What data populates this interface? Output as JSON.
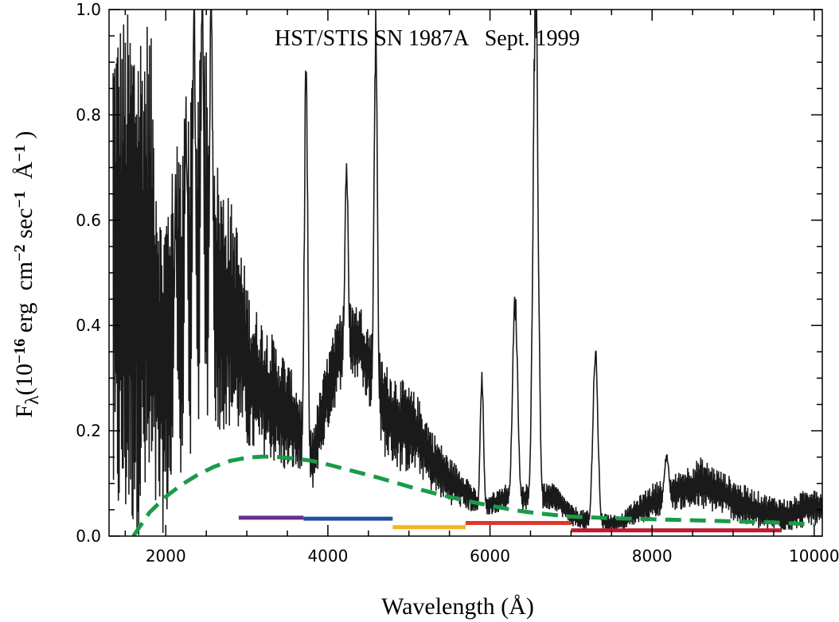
{
  "chart_data": {
    "type": "line",
    "title": "HST/STIS SN 1987A   Sept. 1999",
    "xlabel": "Wavelength (Å)",
    "ylabel": {
      "prefix": "F",
      "sub": "λ",
      "parts": [
        {
          "t": "(10"
        },
        {
          "t": "−16",
          "sup": true
        },
        {
          "t": " erg  cm"
        },
        {
          "t": "−2",
          "sup": true
        },
        {
          "t": " sec"
        },
        {
          "t": "−1",
          "sup": true
        },
        {
          "t": "  Å"
        },
        {
          "t": "−1",
          "sup": true
        },
        {
          "t": " )"
        }
      ]
    },
    "xlim": [
      1300,
      10100
    ],
    "ylim": [
      0.0,
      1.0
    ],
    "xticks": [
      2000,
      4000,
      6000,
      8000,
      10000
    ],
    "xtick_labels": [
      "2000",
      "4000",
      "6000",
      "8000",
      "10000"
    ],
    "yticks": [
      0.0,
      0.2,
      0.4,
      0.6,
      0.8,
      1.0
    ],
    "ytick_labels": [
      "0.0",
      "0.2",
      "0.4",
      "0.6",
      "0.8",
      "1.0"
    ],
    "colors": {
      "spectrum": "#1a1a1a",
      "model": "#1a9b48",
      "bands": [
        "#6b2c91",
        "#1f4fa3",
        "#f5b51a",
        "#e0362c",
        "#c0182e"
      ]
    },
    "series": [
      {
        "style": "solid",
        "envelope": [
          [
            1350,
            0.0,
            1.0
          ],
          [
            1500,
            0.0,
            1.0
          ],
          [
            1650,
            0.0,
            1.0
          ],
          [
            1800,
            0.0,
            1.0
          ],
          [
            1950,
            0.0,
            0.6
          ],
          [
            2100,
            0.05,
            0.75
          ],
          [
            2250,
            0.05,
            0.82
          ],
          [
            2450,
            0.1,
            1.0
          ],
          [
            2650,
            0.2,
            0.7
          ],
          [
            2850,
            0.2,
            0.62
          ],
          [
            3050,
            0.15,
            0.45
          ],
          [
            3250,
            0.15,
            0.4
          ],
          [
            3450,
            0.12,
            0.35
          ],
          [
            3600,
            0.12,
            0.3
          ],
          [
            3800,
            0.08,
            0.2
          ],
          [
            4000,
            0.2,
            0.35
          ],
          [
            4200,
            0.3,
            0.45
          ],
          [
            4400,
            0.3,
            0.44
          ],
          [
            4700,
            0.15,
            0.33
          ],
          [
            4900,
            0.12,
            0.3
          ],
          [
            5100,
            0.12,
            0.27
          ],
          [
            5300,
            0.08,
            0.2
          ],
          [
            5500,
            0.06,
            0.15
          ],
          [
            5700,
            0.05,
            0.12
          ],
          [
            5850,
            0.04,
            0.08
          ],
          [
            6000,
            0.04,
            0.08
          ],
          [
            6200,
            0.05,
            0.1
          ],
          [
            6800,
            0.05,
            0.1
          ],
          [
            7000,
            0.02,
            0.06
          ],
          [
            7150,
            0.01,
            0.05
          ],
          [
            7600,
            0.01,
            0.04
          ],
          [
            7800,
            0.02,
            0.07
          ],
          [
            8000,
            0.03,
            0.1
          ],
          [
            8300,
            0.05,
            0.12
          ],
          [
            8600,
            0.05,
            0.15
          ],
          [
            8900,
            0.04,
            0.12
          ],
          [
            9100,
            0.02,
            0.1
          ],
          [
            9400,
            0.01,
            0.08
          ],
          [
            9700,
            0.01,
            0.07
          ],
          [
            10000,
            0.02,
            0.1
          ],
          [
            10100,
            0.02,
            0.08
          ]
        ],
        "peaks": [
          [
            2120,
            0.6
          ],
          [
            2250,
            0.78
          ],
          [
            2350,
            0.97
          ],
          [
            2450,
            1.0
          ],
          [
            2560,
            1.0
          ],
          [
            3730,
            0.88
          ],
          [
            4230,
            0.68
          ],
          [
            4590,
            0.94
          ],
          [
            5900,
            0.29
          ],
          [
            6310,
            0.44
          ],
          [
            6563,
            1.0
          ],
          [
            7300,
            0.34
          ],
          [
            8180,
            0.15
          ]
        ]
      },
      {
        "style": "dashed",
        "x": [
          1600,
          1800,
          2000,
          2200,
          2400,
          2600,
          2800,
          3000,
          3200,
          3400,
          3600,
          3800,
          4000,
          4200,
          4400,
          4600,
          4800,
          5000,
          5200,
          5400,
          5600,
          5800,
          6000,
          6200,
          6400,
          6600,
          6800,
          7000,
          7500,
          8000,
          8500,
          9000,
          9500,
          10000
        ],
        "y": [
          0.0,
          0.045,
          0.075,
          0.098,
          0.117,
          0.132,
          0.143,
          0.149,
          0.151,
          0.15,
          0.147,
          0.143,
          0.136,
          0.128,
          0.12,
          0.112,
          0.103,
          0.094,
          0.086,
          0.078,
          0.071,
          0.064,
          0.058,
          0.052,
          0.047,
          0.043,
          0.04,
          0.037,
          0.034,
          0.032,
          0.03,
          0.028,
          0.026,
          0.022
        ]
      }
    ],
    "bands": [
      {
        "x": [
          2900,
          3700
        ],
        "y": 0.035
      },
      {
        "x": [
          3700,
          4800
        ],
        "y": 0.033
      },
      {
        "x": [
          4800,
          5700
        ],
        "y": 0.017
      },
      {
        "x": [
          5700,
          7000
        ],
        "y": 0.025
      },
      {
        "x": [
          7000,
          9600
        ],
        "y": 0.011
      }
    ]
  }
}
